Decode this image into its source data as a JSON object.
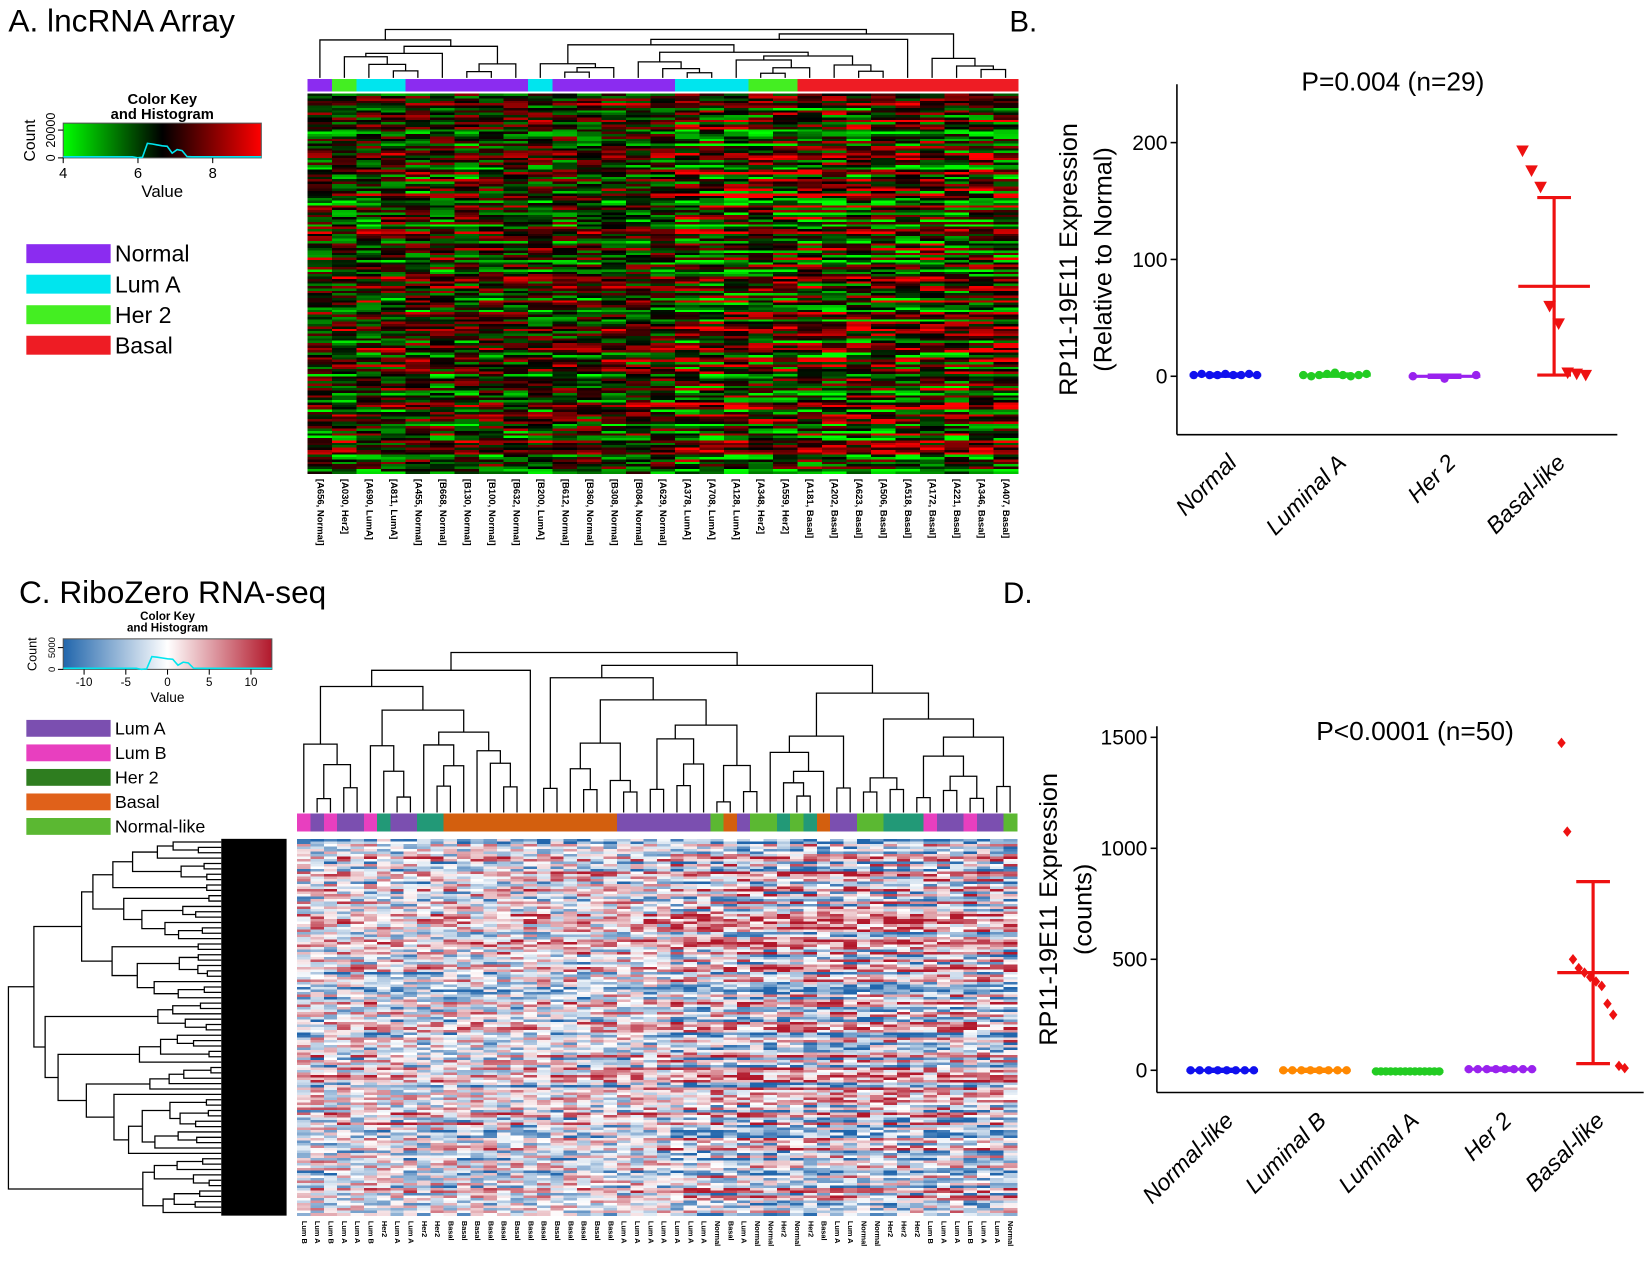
{
  "panels": {
    "a": "A. lncRNA Array",
    "b": "B.",
    "c": "C. RiboZero RNA-seq",
    "d": "D."
  },
  "heatmap_a": {
    "key": {
      "title": [
        "Color Key",
        "and Histogram"
      ],
      "count_label": "Count",
      "value_label": "Value",
      "xlim": [
        4,
        9.3
      ],
      "xticks": [
        4,
        6,
        8
      ],
      "ylim": [
        0,
        25000
      ],
      "yticks": [
        0,
        20000
      ],
      "gradient": [
        "#00ff00",
        "#000000",
        "#ff0000"
      ]
    },
    "legend": [
      {
        "name": "Normal",
        "color": "#8b2cf0"
      },
      {
        "name": "Lum A",
        "color": "#00e5ee"
      },
      {
        "name": "Her 2",
        "color": "#44ee22"
      },
      {
        "name": "Basal",
        "color": "#ee1c24"
      }
    ],
    "columns": [
      "[A656, Normal]",
      "[A030, Her2]",
      "[A690, LumA]",
      "[A811, LumA]",
      "[A455, Normal]",
      "[B668, Normal]",
      "[B130, Normal]",
      "[B100, Normal]",
      "[B632, Normal]",
      "[B200, LumA]",
      "[B612, Normal]",
      "[B360, Normal]",
      "[B308, Normal]",
      "[B084, Normal]",
      "[A629, Normal]",
      "[A378, LumA]",
      "[A708, LumA]",
      "[A128, LumA]",
      "[A348, Her2]",
      "[A559, Her2]",
      "[A181, Basal]",
      "[A202, Basal]",
      "[A623, Basal]",
      "[A506, Basal]",
      "[A518, Basal]",
      "[A172, Basal]",
      "[A221, Basal]",
      "[A346, Basal]",
      "[A407, Basal]"
    ],
    "column_colors": [
      "#8b2cf0",
      "#44ee22",
      "#00e5ee",
      "#00e5ee",
      "#8b2cf0",
      "#8b2cf0",
      "#8b2cf0",
      "#8b2cf0",
      "#8b2cf0",
      "#00e5ee",
      "#8b2cf0",
      "#8b2cf0",
      "#8b2cf0",
      "#8b2cf0",
      "#8b2cf0",
      "#00e5ee",
      "#00e5ee",
      "#00e5ee",
      "#44ee22",
      "#44ee22",
      "#ee1c24",
      "#ee1c24",
      "#ee1c24",
      "#ee1c24",
      "#ee1c24",
      "#ee1c24",
      "#ee1c24",
      "#ee1c24",
      "#ee1c24"
    ]
  },
  "heatmap_c": {
    "key": {
      "title": [
        "Color Key",
        "and Histogram"
      ],
      "count_label": "Count",
      "value_label": "Value",
      "xlim": [
        -12.5,
        12.5
      ],
      "xticks": [
        -10,
        -5,
        0,
        5,
        10
      ],
      "ylim": [
        0,
        7000
      ],
      "yticks": [
        0,
        5000
      ],
      "gradient": [
        "#2166ac",
        "#ffffff",
        "#b2182b"
      ]
    },
    "legend": [
      {
        "name": "Lum A",
        "color": "#7b4fb0"
      },
      {
        "name": "Lum B",
        "color": "#e83fbf"
      },
      {
        "name": "Her 2",
        "color": "#2e7d1f"
      },
      {
        "name": "Basal",
        "color": "#e0611a"
      },
      {
        "name": "Normal-like",
        "color": "#5bb832"
      }
    ],
    "columns": [
      "Lum B",
      "Lum A",
      "Lum B",
      "Lum A",
      "Lum A",
      "Lum B",
      "Her2",
      "Lum A",
      "Lum A",
      "Her2",
      "Her2",
      "Basal",
      "Basal",
      "Basal",
      "Basal",
      "Basal",
      "Basal",
      "Basal",
      "Basal",
      "Basal",
      "Basal",
      "Basal",
      "Basal",
      "Basal",
      "Lum A",
      "Lum A",
      "Lum A",
      "Lum A",
      "Lum A",
      "Lum A",
      "Lum A",
      "Normal",
      "Basal",
      "Lum A",
      "Normal",
      "Normal",
      "Her2",
      "Normal",
      "Her2",
      "Basal",
      "Lum A",
      "Lum A",
      "Normal",
      "Normal",
      "Her2",
      "Her2",
      "Her2",
      "Lum B",
      "Lum A",
      "Lum A",
      "Lum B",
      "Lum A",
      "Lum A",
      "Normal"
    ],
    "column_colors": [
      "#e83fbf",
      "#7b4fb0",
      "#e83fbf",
      "#7b4fb0",
      "#7b4fb0",
      "#e83fbf",
      "#229977",
      "#7b4fb0",
      "#7b4fb0",
      "#229977",
      "#229977",
      "#d35f0e",
      "#d35f0e",
      "#d35f0e",
      "#d35f0e",
      "#d35f0e",
      "#d35f0e",
      "#d35f0e",
      "#d35f0e",
      "#d35f0e",
      "#d35f0e",
      "#d35f0e",
      "#d35f0e",
      "#d35f0e",
      "#7b4fb0",
      "#7b4fb0",
      "#7b4fb0",
      "#7b4fb0",
      "#7b4fb0",
      "#7b4fb0",
      "#7b4fb0",
      "#5bb832",
      "#d35f0e",
      "#7b4fb0",
      "#5bb832",
      "#5bb832",
      "#229977",
      "#5bb832",
      "#229977",
      "#d35f0e",
      "#7b4fb0",
      "#7b4fb0",
      "#5bb832",
      "#5bb832",
      "#229977",
      "#229977",
      "#229977",
      "#e83fbf",
      "#7b4fb0",
      "#7b4fb0",
      "#e83fbf",
      "#7b4fb0",
      "#7b4fb0",
      "#5bb832"
    ]
  },
  "chart_data": [
    {
      "type": "scatter",
      "title": "P=0.004 (n=29)",
      "ylabel": [
        "RP11-19E11 Expression",
        "(Relative to Normal)"
      ],
      "categories": [
        "Normal",
        "Luminal A",
        "Her 2",
        "Basal-like"
      ],
      "colors": [
        "#1010ee",
        "#22cc22",
        "#9922ee",
        "#ee1111"
      ],
      "markers": [
        "circle",
        "circle",
        "circle",
        "triangle"
      ],
      "points": [
        [
          1,
          2,
          1,
          1,
          2,
          1,
          1,
          2,
          1
        ],
        [
          1,
          0,
          1,
          2,
          3,
          1,
          0,
          1,
          2
        ],
        [
          0,
          -2,
          1
        ],
        [
          193,
          176,
          162,
          60,
          45,
          3,
          2,
          1
        ]
      ],
      "means": [
        1,
        1,
        0,
        77
      ],
      "errors": [
        1,
        1,
        1,
        76
      ],
      "ylim": [
        -50,
        250
      ],
      "yticks": [
        0,
        100,
        200
      ]
    },
    {
      "type": "scatter",
      "title": "P<0.0001 (n=50)",
      "ylabel": [
        "RP11-19E11 Expression",
        "(counts)"
      ],
      "categories": [
        "Normal-like",
        "Luminal B",
        "Luminal A",
        "Her 2",
        "Basal-like"
      ],
      "colors": [
        "#1010ee",
        "#ff8800",
        "#22cc22",
        "#9922ee",
        "#ee1111"
      ],
      "markers": [
        "circle",
        "circle",
        "circle",
        "circle",
        "diamond"
      ],
      "points": [
        [
          0,
          0,
          0,
          0,
          0,
          0,
          0,
          0
        ],
        [
          0,
          0,
          0,
          0,
          0,
          0,
          0,
          0
        ],
        [
          -5,
          -5,
          -5,
          -5,
          -5,
          -5,
          -5,
          -5,
          -5,
          -5,
          -5,
          -5,
          -5,
          -5
        ],
        [
          5,
          5,
          5,
          5,
          5,
          5,
          5,
          5
        ],
        [
          1475,
          1075,
          500,
          460,
          440,
          420,
          400,
          380,
          300,
          250,
          20,
          10
        ]
      ],
      "means": [
        0,
        0,
        -5,
        5,
        440
      ],
      "errors": [
        5,
        5,
        5,
        5,
        410
      ],
      "ylim": [
        -100,
        1550
      ],
      "yticks": [
        0,
        500,
        1000,
        1500
      ]
    }
  ]
}
